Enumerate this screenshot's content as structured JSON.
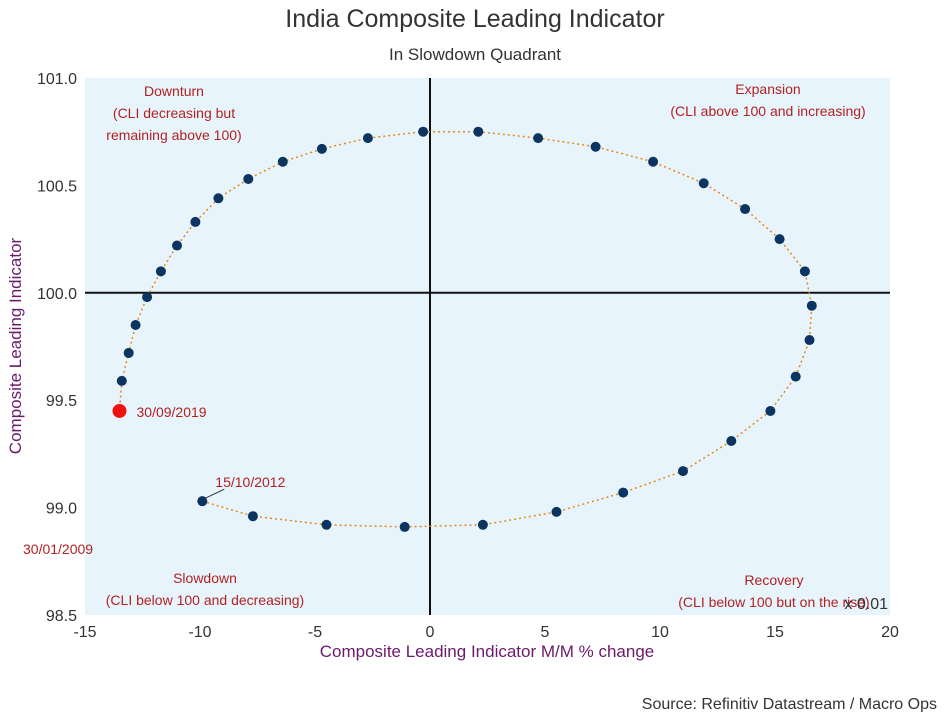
{
  "chart_data": {
    "type": "scatter",
    "title": "India Composite Leading Indicator",
    "subtitle": "In Slowdown Quadrant",
    "xlabel": "Composite Leading Indicator M/M % change",
    "ylabel": "Composite Leading Indicator",
    "xlim": [
      -15,
      20
    ],
    "ylim": [
      98.5,
      101.0
    ],
    "x_ticks": [
      "-15",
      "-10",
      "-5",
      "0",
      "5",
      "10",
      "15",
      "20"
    ],
    "y_ticks": [
      "98.5",
      "99.0",
      "99.5",
      "100.0",
      "100.5",
      "101.0"
    ],
    "x_multiplier": "x 0.01",
    "crosshair": {
      "x": 0,
      "y": 100.0
    },
    "series": [
      {
        "name": "CLI path",
        "points": [
          {
            "x": -9.9,
            "y": 99.03
          },
          {
            "x": -7.7,
            "y": 98.96
          },
          {
            "x": -4.5,
            "y": 98.92
          },
          {
            "x": -1.1,
            "y": 98.91
          },
          {
            "x": 2.3,
            "y": 98.92
          },
          {
            "x": 5.5,
            "y": 98.98
          },
          {
            "x": 8.4,
            "y": 99.07
          },
          {
            "x": 11.0,
            "y": 99.17
          },
          {
            "x": 13.1,
            "y": 99.31
          },
          {
            "x": 14.8,
            "y": 99.45
          },
          {
            "x": 15.9,
            "y": 99.61
          },
          {
            "x": 16.5,
            "y": 99.78
          },
          {
            "x": 16.6,
            "y": 99.94
          },
          {
            "x": 16.3,
            "y": 100.1
          },
          {
            "x": 15.2,
            "y": 100.25
          },
          {
            "x": 13.7,
            "y": 100.39
          },
          {
            "x": 11.9,
            "y": 100.51
          },
          {
            "x": 9.7,
            "y": 100.61
          },
          {
            "x": 7.2,
            "y": 100.68
          },
          {
            "x": 4.7,
            "y": 100.72
          },
          {
            "x": 2.1,
            "y": 100.75
          },
          {
            "x": -0.3,
            "y": 100.75
          },
          {
            "x": -2.7,
            "y": 100.72
          },
          {
            "x": -4.7,
            "y": 100.67
          },
          {
            "x": -6.4,
            "y": 100.61
          },
          {
            "x": -7.9,
            "y": 100.53
          },
          {
            "x": -9.2,
            "y": 100.44
          },
          {
            "x": -10.2,
            "y": 100.33
          },
          {
            "x": -11.0,
            "y": 100.22
          },
          {
            "x": -11.7,
            "y": 100.1
          },
          {
            "x": -12.3,
            "y": 99.98
          },
          {
            "x": -12.8,
            "y": 99.85
          },
          {
            "x": -13.1,
            "y": 99.72
          },
          {
            "x": -13.4,
            "y": 99.59
          },
          {
            "x": -13.5,
            "y": 99.45
          }
        ],
        "marker_color": "#0b3560",
        "line_color": "#e38a1b",
        "latest_color": "#ee1111"
      }
    ],
    "annotations": {
      "latest_date": "30/09/2019",
      "start_date": "15/10/2012",
      "corner_date": "30/01/2009"
    },
    "quadrants": {
      "downturn": [
        "Downturn",
        "(CLI decreasing but",
        "remaining above 100)"
      ],
      "expansion": [
        "Expansion",
        "(CLI above 100 and increasing)"
      ],
      "slowdown": [
        "Slowdown",
        "(CLI below 100 and decreasing)"
      ],
      "recovery": [
        "Recovery",
        "(CLI below 100 but on the rise)"
      ]
    },
    "colors": {
      "plot_bg": "#e8f4fc",
      "quadrant_text": "#b22222",
      "axis_label": "#6b1a6b",
      "crosshair": "#111111"
    },
    "source": "Source: Refinitiv Datastream / Macro Ops"
  }
}
